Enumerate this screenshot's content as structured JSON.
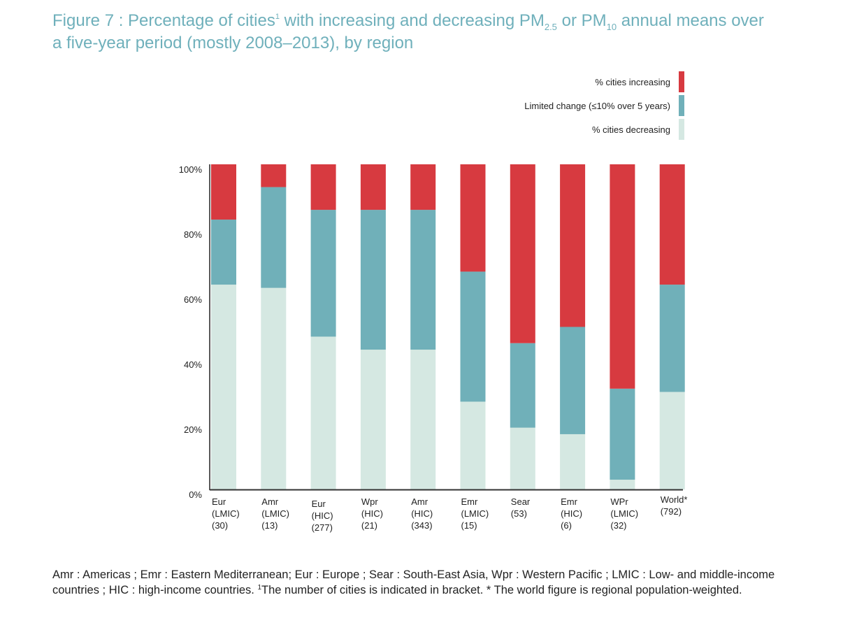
{
  "title": {
    "line1_prefix": "Figure 7 : Percentage of cities",
    "footnote_mark": "1",
    "line1_mid": " with increasing and decreasing PM",
    "sub1": "2.5",
    "line1_or": " or PM",
    "sub2": "10",
    "line1_suffix": " annual means over",
    "line2": "a five-year period (mostly 2008–2013), by region"
  },
  "legend": {
    "items": [
      {
        "label": "% cities increasing",
        "color": "#d73a40"
      },
      {
        "label": "Limited change (≤10% over 5 years)",
        "color": "#70b0b9"
      },
      {
        "label": "% cities decreasing",
        "color": "#d5e8e2"
      }
    ]
  },
  "chart_data": {
    "type": "bar",
    "stacked": true,
    "title": "Percentage of cities with increasing and decreasing PM2.5 or PM10 annual means over a five-year period (mostly 2008–2013), by region",
    "xlabel": "",
    "ylabel": "",
    "ylim": [
      0,
      100
    ],
    "yticks": [
      "0%",
      "20%",
      "40%",
      "60%",
      "80%",
      "100%"
    ],
    "ytick_values": [
      0,
      20,
      40,
      60,
      80,
      100
    ],
    "grid": false,
    "legend_position": "top-right",
    "categories": [
      [
        "Eur",
        "(LMIC)",
        "(30)"
      ],
      [
        "Amr",
        "(LMIC)",
        "(13)"
      ],
      [
        "Eur",
        "(HIC)",
        "(277)"
      ],
      [
        "Wpr",
        "(HIC)",
        "(21)"
      ],
      [
        "Amr",
        "(HIC)",
        "(343)"
      ],
      [
        "Emr",
        "(LMIC)",
        "(15)"
      ],
      [
        "Sear",
        "(53)"
      ],
      [
        "Emr",
        "(HIC)",
        "(6)"
      ],
      [
        "WPr",
        "(LMIC)",
        "(32)"
      ],
      [
        "World*",
        "(792)"
      ]
    ],
    "series": [
      {
        "name": "% cities decreasing",
        "color": "#d5e8e2",
        "values": [
          63,
          62,
          47,
          43,
          43,
          27,
          19,
          17,
          3,
          30
        ]
      },
      {
        "name": "Limited change (≤10% over 5 years)",
        "color": "#70b0b9",
        "values": [
          20,
          31,
          39,
          43,
          43,
          40,
          26,
          33,
          28,
          33
        ]
      },
      {
        "name": "% cities increasing",
        "color": "#d73a40",
        "values": [
          17,
          7,
          14,
          14,
          14,
          33,
          55,
          50,
          69,
          37
        ]
      }
    ]
  },
  "footnote": {
    "part1": "Amr : Americas ; Emr : Eastern Mediterranean; Eur : Europe ; Sear : South-East Asia, Wpr : Western Pacific ; LMIC : Low- and middle-income countries ; HIC : high-income countries. ",
    "mark": "1",
    "part2": "The number of cities is indicated in bracket. * The world figure is regional population-weighted."
  }
}
